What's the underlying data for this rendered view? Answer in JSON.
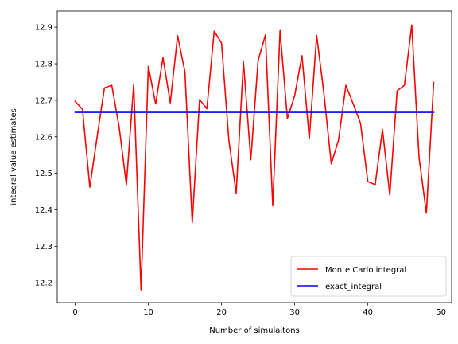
{
  "chart_data": {
    "type": "line",
    "title": "",
    "xlabel": "Number of simulaitons",
    "ylabel": "integral value estimates",
    "xlim": [
      -2.45,
      51.45
    ],
    "ylim": [
      12.146,
      12.944
    ],
    "x_ticks": [
      0,
      10,
      20,
      30,
      40,
      50
    ],
    "x_tick_labels": [
      "0",
      "10",
      "20",
      "30",
      "40",
      "50"
    ],
    "y_ticks": [
      12.2,
      12.3,
      12.4,
      12.5,
      12.6,
      12.7,
      12.8,
      12.9
    ],
    "y_tick_labels": [
      "12.2",
      "12.3",
      "12.4",
      "12.5",
      "12.6",
      "12.7",
      "12.8",
      "12.9"
    ],
    "grid": false,
    "legend_position": "lower right",
    "x": [
      0,
      1,
      2,
      3,
      4,
      5,
      6,
      7,
      8,
      9,
      10,
      11,
      12,
      13,
      14,
      15,
      16,
      17,
      18,
      19,
      20,
      21,
      22,
      23,
      24,
      25,
      26,
      27,
      28,
      29,
      30,
      31,
      32,
      33,
      34,
      35,
      36,
      37,
      38,
      39,
      40,
      41,
      42,
      43,
      44,
      45,
      46,
      47,
      48,
      49
    ],
    "series": [
      {
        "name": "Monte Carlo integral",
        "color": "#ff0000",
        "values": [
          12.697,
          12.675,
          12.462,
          12.6,
          12.734,
          12.741,
          12.628,
          12.469,
          12.743,
          12.181,
          12.793,
          12.69,
          12.817,
          12.693,
          12.877,
          12.778,
          12.365,
          12.702,
          12.677,
          12.889,
          12.857,
          12.591,
          12.446,
          12.805,
          12.537,
          12.809,
          12.879,
          12.411,
          12.891,
          12.65,
          12.713,
          12.822,
          12.595,
          12.878,
          12.718,
          12.526,
          12.592,
          12.741,
          12.69,
          12.637,
          12.477,
          12.469,
          12.62,
          12.441,
          12.726,
          12.741,
          12.906,
          12.543,
          12.391,
          12.749
        ]
      },
      {
        "name": "exact_integral",
        "color": "#0000ff",
        "values": [
          12.667,
          12.667,
          12.667,
          12.667,
          12.667,
          12.667,
          12.667,
          12.667,
          12.667,
          12.667,
          12.667,
          12.667,
          12.667,
          12.667,
          12.667,
          12.667,
          12.667,
          12.667,
          12.667,
          12.667,
          12.667,
          12.667,
          12.667,
          12.667,
          12.667,
          12.667,
          12.667,
          12.667,
          12.667,
          12.667,
          12.667,
          12.667,
          12.667,
          12.667,
          12.667,
          12.667,
          12.667,
          12.667,
          12.667,
          12.667,
          12.667,
          12.667,
          12.667,
          12.667,
          12.667,
          12.667,
          12.667,
          12.667,
          12.667,
          12.667
        ]
      }
    ]
  }
}
